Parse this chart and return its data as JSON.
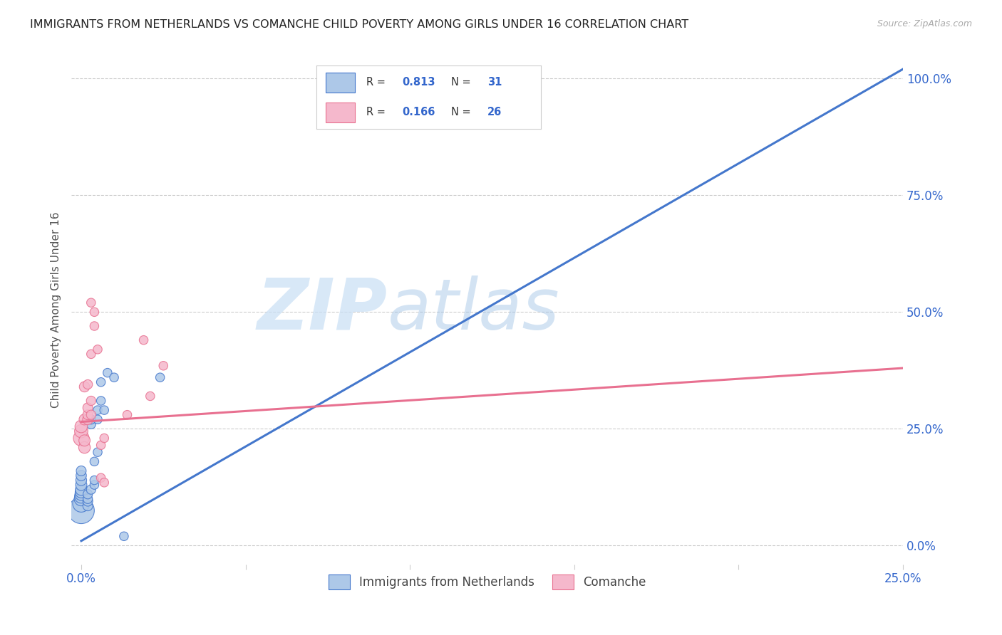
{
  "title": "IMMIGRANTS FROM NETHERLANDS VS COMANCHE CHILD POVERTY AMONG GIRLS UNDER 16 CORRELATION CHART",
  "source": "Source: ZipAtlas.com",
  "ylabel": "Child Poverty Among Girls Under 16",
  "ylabel_right_ticks": [
    "0.0%",
    "25.0%",
    "50.0%",
    "75.0%",
    "100.0%"
  ],
  "ylabel_right_vals": [
    0.0,
    0.25,
    0.5,
    0.75,
    1.0
  ],
  "legend_R_blue": "0.813",
  "legend_N_blue": "31",
  "legend_R_pink": "0.166",
  "legend_N_pink": "26",
  "blue_color": "#adc8e8",
  "blue_line_color": "#4477cc",
  "pink_color": "#f5b8cc",
  "pink_line_color": "#e87090",
  "watermark_zip": "ZIP",
  "watermark_atlas": "atlas",
  "blue_scatter": [
    [
      0.0,
      0.075
    ],
    [
      0.0,
      0.09
    ],
    [
      0.0,
      0.1
    ],
    [
      0.0,
      0.105
    ],
    [
      0.0,
      0.11
    ],
    [
      0.0,
      0.115
    ],
    [
      0.0,
      0.12
    ],
    [
      0.0,
      0.13
    ],
    [
      0.0,
      0.14
    ],
    [
      0.0,
      0.15
    ],
    [
      0.0,
      0.16
    ],
    [
      0.0002,
      0.085
    ],
    [
      0.0002,
      0.095
    ],
    [
      0.0002,
      0.1
    ],
    [
      0.0002,
      0.11
    ],
    [
      0.0003,
      0.12
    ],
    [
      0.0003,
      0.26
    ],
    [
      0.0003,
      0.27
    ],
    [
      0.0004,
      0.13
    ],
    [
      0.0004,
      0.14
    ],
    [
      0.0004,
      0.18
    ],
    [
      0.0005,
      0.2
    ],
    [
      0.0005,
      0.27
    ],
    [
      0.0005,
      0.29
    ],
    [
      0.0006,
      0.31
    ],
    [
      0.0006,
      0.35
    ],
    [
      0.0007,
      0.29
    ],
    [
      0.0008,
      0.37
    ],
    [
      0.001,
      0.36
    ],
    [
      0.0013,
      0.02
    ],
    [
      0.0024,
      0.36
    ]
  ],
  "pink_scatter": [
    [
      0.0,
      0.23
    ],
    [
      0.0,
      0.245
    ],
    [
      0.0,
      0.255
    ],
    [
      0.0001,
      0.21
    ],
    [
      0.0001,
      0.225
    ],
    [
      0.0001,
      0.27
    ],
    [
      0.0001,
      0.34
    ],
    [
      0.0002,
      0.27
    ],
    [
      0.0002,
      0.28
    ],
    [
      0.0002,
      0.295
    ],
    [
      0.0002,
      0.345
    ],
    [
      0.0003,
      0.28
    ],
    [
      0.0003,
      0.31
    ],
    [
      0.0003,
      0.41
    ],
    [
      0.0003,
      0.52
    ],
    [
      0.0004,
      0.47
    ],
    [
      0.0004,
      0.5
    ],
    [
      0.0005,
      0.42
    ],
    [
      0.0006,
      0.215
    ],
    [
      0.0006,
      0.145
    ],
    [
      0.0007,
      0.23
    ],
    [
      0.0007,
      0.135
    ],
    [
      0.0014,
      0.28
    ],
    [
      0.0019,
      0.44
    ],
    [
      0.0021,
      0.32
    ],
    [
      0.0025,
      0.385
    ]
  ],
  "blue_sizes": [
    700,
    300,
    200,
    180,
    160,
    150,
    140,
    130,
    120,
    110,
    100,
    100,
    100,
    90,
    90,
    90,
    90,
    90,
    80,
    80,
    80,
    80,
    80,
    80,
    80,
    80,
    80,
    80,
    80,
    80,
    80
  ],
  "pink_sizes": [
    250,
    180,
    160,
    140,
    130,
    120,
    110,
    110,
    100,
    100,
    90,
    90,
    90,
    80,
    80,
    80,
    80,
    80,
    80,
    80,
    80,
    80,
    80,
    80,
    80,
    80
  ],
  "blue_line_x": [
    0.0,
    0.025
  ],
  "blue_line_y": [
    0.01,
    1.02
  ],
  "pink_line_x": [
    0.0,
    0.025
  ],
  "pink_line_y": [
    0.265,
    0.38
  ],
  "xmin": -0.0003,
  "xmax": 0.025,
  "ymin": -0.04,
  "ymax": 1.05,
  "xtick_vals": [
    0.0,
    0.005,
    0.01,
    0.015,
    0.02,
    0.025
  ],
  "xtick_labels": [
    "0.0%",
    "",
    "",
    "",
    "",
    "25.0%"
  ]
}
